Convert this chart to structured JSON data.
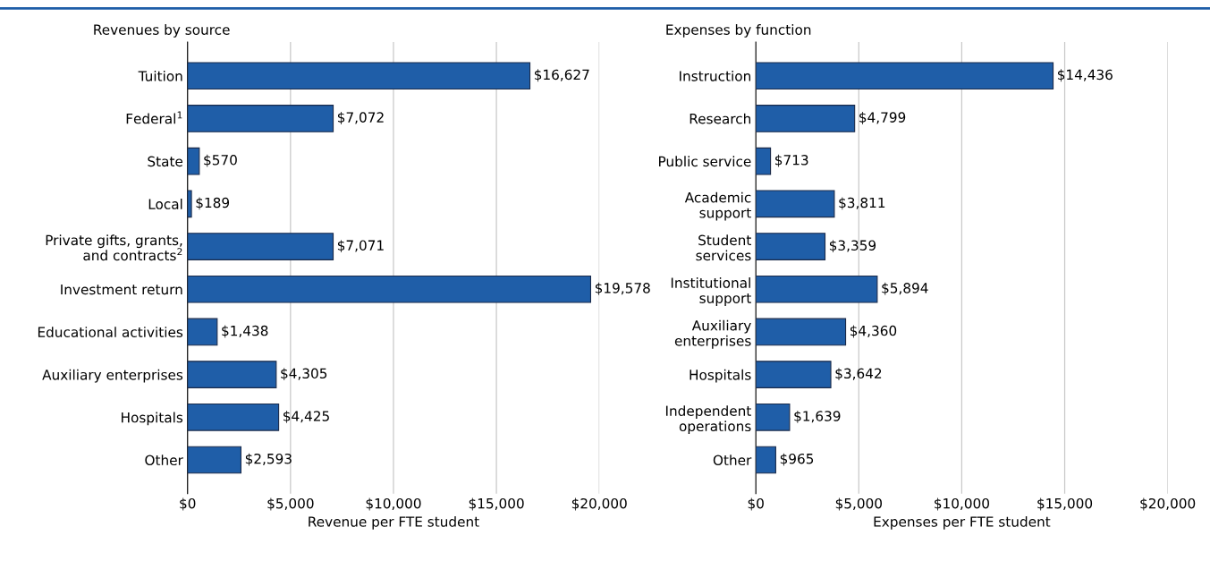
{
  "chart_data": [
    {
      "type": "bar",
      "orientation": "horizontal",
      "title": "Revenues by source",
      "xlabel": "Revenue per FTE student",
      "categories": [
        "Tuition",
        "Federal$^{1}$",
        "State",
        "Local",
        "Private gifts, grants,\nand contracts$^{2}$",
        "Investment return",
        "Educational activities",
        "Auxiliary enterprises",
        "Hospitals",
        "Other"
      ],
      "values": [
        16627,
        7072,
        570,
        189,
        7071,
        19578,
        1438,
        4305,
        4425,
        2593
      ],
      "value_labels": [
        "$16,627",
        "$7,072",
        "$570",
        "$189",
        "$7,071",
        "$19,578",
        "$1,438",
        "$4,305",
        "$4,425",
        "$2,593"
      ],
      "color": "#1f5ea8",
      "xlim": [
        0,
        20000
      ],
      "xticks": [
        {
          "value": 0,
          "label": "$0"
        },
        {
          "value": 5000,
          "label": "$5,000"
        },
        {
          "value": 10000,
          "label": "$10,000"
        },
        {
          "value": 15000,
          "label": "$15,000"
        },
        {
          "value": 20000,
          "label": "$20,000"
        }
      ],
      "grid": "x",
      "legend": false
    },
    {
      "type": "bar",
      "orientation": "horizontal",
      "title": "Expenses by function",
      "xlabel": "Expenses per FTE student",
      "categories": [
        "Instruction",
        "Research",
        "Public service",
        "Academic\nsupport",
        "Student\nservices",
        "Institutional\nsupport",
        "Auxiliary\nenterprises",
        "Hospitals",
        "Independent\noperations",
        "Other"
      ],
      "values": [
        14436,
        4799,
        713,
        3811,
        3359,
        5894,
        4360,
        3642,
        1639,
        965
      ],
      "value_labels": [
        "$14,436",
        "$4,799",
        "$713",
        "$3,811",
        "$3,359",
        "$5,894",
        "$4,360",
        "$3,642",
        "$1,639",
        "$965"
      ],
      "color": "#1f5ea8",
      "xlim": [
        0,
        20000
      ],
      "xticks": [
        {
          "value": 0,
          "label": "$0"
        },
        {
          "value": 5000,
          "label": "$5,000"
        },
        {
          "value": 10000,
          "label": "$10,000"
        },
        {
          "value": 15000,
          "label": "$15,000"
        },
        {
          "value": 20000,
          "label": "$20,000"
        }
      ],
      "grid": "x",
      "legend": false
    }
  ]
}
